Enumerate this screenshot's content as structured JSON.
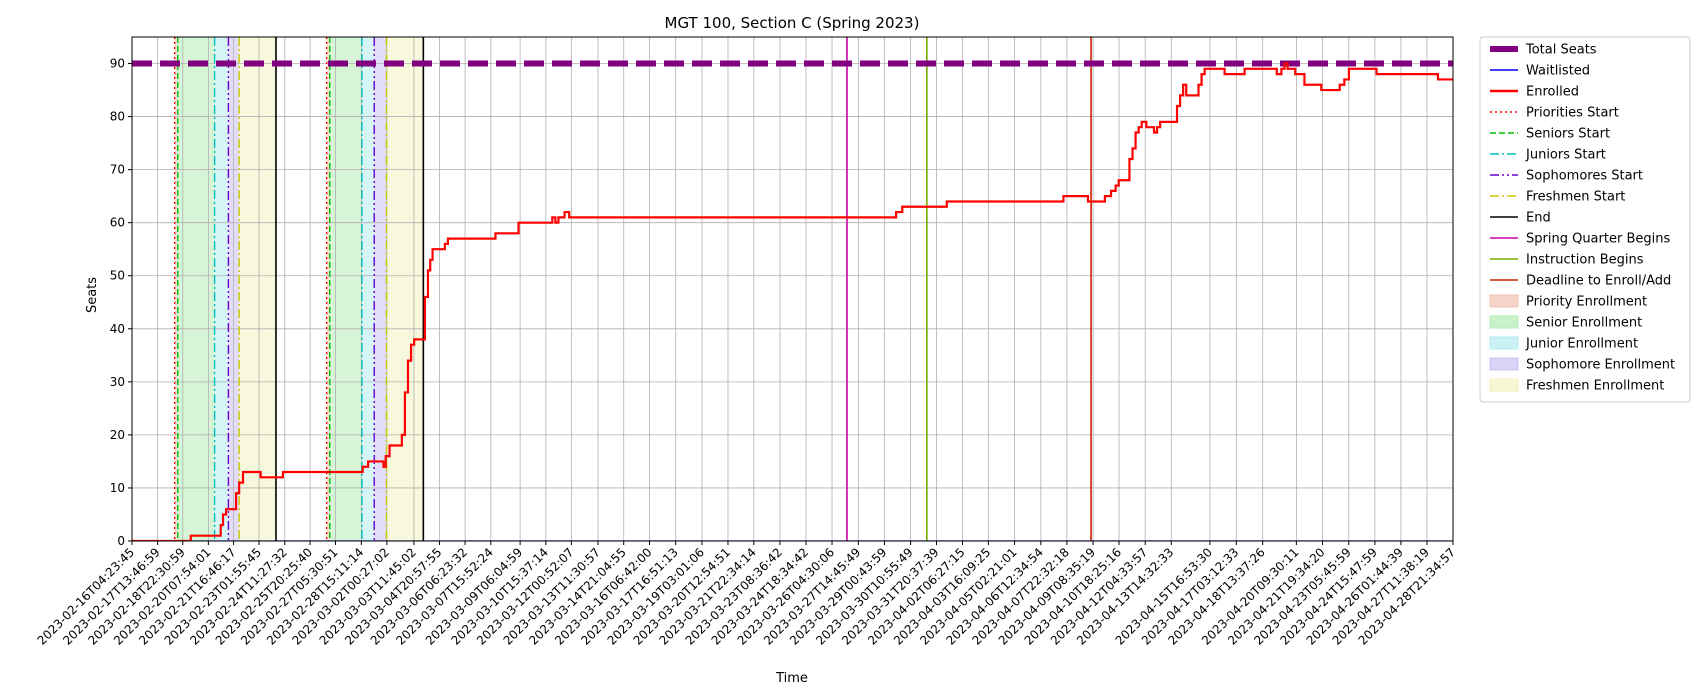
{
  "chart_data": {
    "type": "line",
    "title": "MGT 100, Section C (Spring 2023)",
    "xlabel": "Time",
    "ylabel": "Seats",
    "ylim": [
      0,
      95
    ],
    "yticks": [
      0,
      10,
      20,
      30,
      40,
      50,
      60,
      70,
      80,
      90
    ],
    "grid": true,
    "legend_position": "outside-right",
    "x_range": [
      "2023-02-16T04:23:45",
      "2023-04-28T21:34:57"
    ],
    "x_ticks": [
      "2023-02-16T04:23:45",
      "2023-02-17T13:46:59",
      "2023-02-18T22:30:59",
      "2023-02-20T07:54:01",
      "2023-02-21T16:46:17",
      "2023-02-23T01:55:45",
      "2023-02-24T11:27:32",
      "2023-02-25T20:25:40",
      "2023-02-27T05:30:51",
      "2023-02-28T15:11:14",
      "2023-03-02T00:27:02",
      "2023-03-03T11:45:02",
      "2023-03-04T20:57:55",
      "2023-03-06T06:23:32",
      "2023-03-07T15:52:24",
      "2023-03-09T06:04:59",
      "2023-03-10T15:37:14",
      "2023-03-12T00:52:07",
      "2023-03-13T11:30:57",
      "2023-03-14T21:04:55",
      "2023-03-16T06:42:00",
      "2023-03-17T16:51:13",
      "2023-03-19T03:01:06",
      "2023-03-20T12:54:51",
      "2023-03-21T22:34:14",
      "2023-03-23T08:36:42",
      "2023-03-24T18:34:42",
      "2023-03-26T04:30:06",
      "2023-03-27T14:45:49",
      "2023-03-29T00:43:59",
      "2023-03-30T10:55:49",
      "2023-03-31T20:37:39",
      "2023-04-02T06:27:15",
      "2023-04-03T16:09:25",
      "2023-04-05T02:21:01",
      "2023-04-06T12:34:54",
      "2023-04-07T22:32:18",
      "2023-04-09T08:35:19",
      "2023-04-10T18:25:16",
      "2023-04-12T04:33:57",
      "2023-04-13T14:32:33",
      "2023-04-15T16:53:30",
      "2023-04-17T03:12:33",
      "2023-04-18T13:37:26",
      "2023-04-20T09:30:11",
      "2023-04-21T19:34:20",
      "2023-04-23T05:45:59",
      "2023-04-24T15:47:59",
      "2023-04-26T01:44:39",
      "2023-04-27T11:38:19",
      "2023-04-28T21:34:57"
    ],
    "series": [
      {
        "name": "Total Seats",
        "color": "#800080",
        "style": "dashed-thick",
        "points": [
          [
            "2023-02-16T04:23:45",
            90
          ],
          [
            "2023-04-28T21:34:57",
            90
          ]
        ]
      },
      {
        "name": "Waitlisted",
        "color": "#0000ff",
        "style": "solid",
        "points": [
          [
            "2023-02-16T04:23:45",
            0
          ],
          [
            "2023-04-28T21:34:57",
            0
          ]
        ]
      },
      {
        "name": "Enrolled",
        "color": "#ff0000",
        "style": "step",
        "points": [
          [
            "2023-02-16T04:23:45",
            0
          ],
          [
            "2023-02-19T08:00:00",
            0
          ],
          [
            "2023-02-19T09:00:00",
            1
          ],
          [
            "2023-02-20T22:00:00",
            1
          ],
          [
            "2023-02-21T00:00:00",
            3
          ],
          [
            "2023-02-21T03:00:00",
            5
          ],
          [
            "2023-02-21T07:00:00",
            6
          ],
          [
            "2023-02-21T16:00:00",
            6
          ],
          [
            "2023-02-21T20:00:00",
            9
          ],
          [
            "2023-02-22T00:00:00",
            11
          ],
          [
            "2023-02-22T05:00:00",
            13
          ],
          [
            "2023-02-23T00:00:00",
            13
          ],
          [
            "2023-02-23T04:00:00",
            12
          ],
          [
            "2023-02-24T07:00:00",
            12
          ],
          [
            "2023-02-24T09:00:00",
            13
          ],
          [
            "2023-02-28T14:00:00",
            13
          ],
          [
            "2023-02-28T17:00:00",
            14
          ],
          [
            "2023-03-01T00:00:00",
            15
          ],
          [
            "2023-03-01T18:00:00",
            15
          ],
          [
            "2023-03-01T20:00:00",
            14
          ],
          [
            "2023-03-01T23:00:00",
            16
          ],
          [
            "2023-03-02T04:00:00",
            18
          ],
          [
            "2023-03-02T18:00:00",
            18
          ],
          [
            "2023-03-02T20:00:00",
            20
          ],
          [
            "2023-03-03T00:00:00",
            28
          ],
          [
            "2023-03-03T04:00:00",
            34
          ],
          [
            "2023-03-03T08:00:00",
            37
          ],
          [
            "2023-03-03T12:00:00",
            38
          ],
          [
            "2023-03-04T00:00:00",
            38
          ],
          [
            "2023-03-04T02:00:00",
            46
          ],
          [
            "2023-03-04T06:00:00",
            51
          ],
          [
            "2023-03-04T09:00:00",
            53
          ],
          [
            "2023-03-04T12:00:00",
            55
          ],
          [
            "2023-03-05T00:00:00",
            55
          ],
          [
            "2023-03-05T04:00:00",
            56
          ],
          [
            "2023-03-05T08:00:00",
            57
          ],
          [
            "2023-03-07T20:00:00",
            57
          ],
          [
            "2023-03-07T22:00:00",
            58
          ],
          [
            "2023-03-09T00:00:00",
            58
          ],
          [
            "2023-03-09T04:00:00",
            60
          ],
          [
            "2023-03-10T22:00:00",
            60
          ],
          [
            "2023-03-11T00:00:00",
            61
          ],
          [
            "2023-03-11T04:00:00",
            60
          ],
          [
            "2023-03-11T08:00:00",
            61
          ],
          [
            "2023-03-11T16:00:00",
            62
          ],
          [
            "2023-03-11T22:00:00",
            61
          ],
          [
            "2023-03-29T12:00:00",
            61
          ],
          [
            "2023-03-29T16:00:00",
            62
          ],
          [
            "2023-03-30T00:00:00",
            63
          ],
          [
            "2023-04-01T06:00:00",
            63
          ],
          [
            "2023-04-01T10:00:00",
            64
          ],
          [
            "2023-04-07T14:00:00",
            64
          ],
          [
            "2023-04-07T18:00:00",
            65
          ],
          [
            "2023-04-08T22:00:00",
            65
          ],
          [
            "2023-04-09T02:00:00",
            64
          ],
          [
            "2023-04-09T20:00:00",
            64
          ],
          [
            "2023-04-10T00:00:00",
            65
          ],
          [
            "2023-04-10T08:00:00",
            66
          ],
          [
            "2023-04-10T14:00:00",
            67
          ],
          [
            "2023-04-10T18:00:00",
            68
          ],
          [
            "2023-04-11T04:00:00",
            68
          ],
          [
            "2023-04-11T08:00:00",
            72
          ],
          [
            "2023-04-11T12:00:00",
            74
          ],
          [
            "2023-04-11T16:00:00",
            77
          ],
          [
            "2023-04-11T20:00:00",
            78
          ],
          [
            "2023-04-12T00:00:00",
            79
          ],
          [
            "2023-04-12T06:00:00",
            78
          ],
          [
            "2023-04-12T16:00:00",
            77
          ],
          [
            "2023-04-12T20:00:00",
            78
          ],
          [
            "2023-04-13T00:00:00",
            79
          ],
          [
            "2023-04-13T18:00:00",
            79
          ],
          [
            "2023-04-13T22:00:00",
            82
          ],
          [
            "2023-04-14T02:00:00",
            84
          ],
          [
            "2023-04-14T06:00:00",
            86
          ],
          [
            "2023-04-14T10:00:00",
            84
          ],
          [
            "2023-04-14T22:00:00",
            84
          ],
          [
            "2023-04-15T02:00:00",
            86
          ],
          [
            "2023-04-15T06:00:00",
            88
          ],
          [
            "2023-04-15T10:00:00",
            89
          ],
          [
            "2023-04-16T08:00:00",
            89
          ],
          [
            "2023-04-16T12:00:00",
            88
          ],
          [
            "2023-04-17T10:00:00",
            88
          ],
          [
            "2023-04-17T14:00:00",
            89
          ],
          [
            "2023-04-19T04:00:00",
            89
          ],
          [
            "2023-04-19T08:00:00",
            88
          ],
          [
            "2023-04-19T14:00:00",
            89
          ],
          [
            "2023-04-19T18:00:00",
            90
          ],
          [
            "2023-04-19T22:00:00",
            89
          ],
          [
            "2023-04-20T08:00:00",
            88
          ],
          [
            "2023-04-20T16:00:00",
            88
          ],
          [
            "2023-04-20T20:00:00",
            86
          ],
          [
            "2023-04-21T14:00:00",
            86
          ],
          [
            "2023-04-21T18:00:00",
            85
          ],
          [
            "2023-04-22T14:00:00",
            85
          ],
          [
            "2023-04-22T18:00:00",
            86
          ],
          [
            "2023-04-23T00:00:00",
            87
          ],
          [
            "2023-04-23T06:00:00",
            89
          ],
          [
            "2023-04-24T14:00:00",
            89
          ],
          [
            "2023-04-24T18:00:00",
            88
          ],
          [
            "2023-04-27T22:00:00",
            88
          ],
          [
            "2023-04-28T02:00:00",
            87
          ],
          [
            "2023-04-29T06:00:00",
            87
          ],
          [
            "2023-04-29T12:00:00",
            86
          ],
          [
            "2023-05-04T00:00:00",
            86
          ]
        ]
      }
    ],
    "vertical_lines": [
      {
        "name": "Priorities Start",
        "color": "#ff0000",
        "style": "dotted",
        "x": [
          "2023-02-18T12:00:00",
          "2023-02-26T18:00:00"
        ]
      },
      {
        "name": "Seniors Start",
        "color": "#00c000",
        "style": "dashed",
        "x": [
          "2023-02-18T16:00:00",
          "2023-02-26T22:00:00"
        ]
      },
      {
        "name": "Juniors Start",
        "color": "#00bfbf",
        "style": "dashdot",
        "x": [
          "2023-02-20T16:00:00",
          "2023-02-28T16:00:00"
        ]
      },
      {
        "name": "Sophomores Start",
        "color": "#6a00cc",
        "style": "dashdotdot",
        "x": [
          "2023-02-21T10:00:00",
          "2023-03-01T08:00:00"
        ]
      },
      {
        "name": "Freshmen Start",
        "color": "#c8c800",
        "style": "dashdot",
        "x": [
          "2023-02-22T00:00:00",
          "2023-03-02T00:00:00"
        ]
      },
      {
        "name": "End",
        "color": "#000000",
        "style": "solid",
        "x": [
          "2023-02-24T00:00:00",
          "2023-03-04T00:00:00"
        ]
      },
      {
        "name": "Spring Quarter Begins",
        "color": "#cc00aa",
        "style": "solid",
        "x": [
          "2023-03-27T00:00:00"
        ]
      },
      {
        "name": "Instruction Begins",
        "color": "#77aa00",
        "style": "solid",
        "x": [
          "2023-03-31T08:00:00"
        ]
      },
      {
        "name": "Deadline to Enroll/Add",
        "color": "#cc2200",
        "style": "solid",
        "x": [
          "2023-04-09T06:00:00"
        ]
      }
    ],
    "shaded_regions": [
      {
        "name": "Priority Enrollment",
        "color": "#f4c2b4",
        "ranges": [
          [
            "2023-02-18T12:00:00",
            "2023-02-18T16:00:00"
          ],
          [
            "2023-02-26T18:00:00",
            "2023-02-26T22:00:00"
          ]
        ]
      },
      {
        "name": "Senior Enrollment",
        "color": "#b4ecb4",
        "ranges": [
          [
            "2023-02-18T16:00:00",
            "2023-02-20T16:00:00"
          ],
          [
            "2023-02-26T22:00:00",
            "2023-02-28T16:00:00"
          ]
        ]
      },
      {
        "name": "Junior Enrollment",
        "color": "#b4ecf0",
        "ranges": [
          [
            "2023-02-20T16:00:00",
            "2023-02-21T10:00:00"
          ],
          [
            "2023-02-28T16:00:00",
            "2023-03-01T08:00:00"
          ]
        ]
      },
      {
        "name": "Sophomore Enrollment",
        "color": "#ccc0f4",
        "ranges": [
          [
            "2023-02-21T10:00:00",
            "2023-02-22T00:00:00"
          ],
          [
            "2023-03-01T08:00:00",
            "2023-03-02T00:00:00"
          ]
        ]
      },
      {
        "name": "Freshmen Enrollment",
        "color": "#f2f2c0",
        "ranges": [
          [
            "2023-02-22T00:00:00",
            "2023-02-24T00:00:00"
          ],
          [
            "2023-03-02T00:00:00",
            "2023-03-04T00:00:00"
          ]
        ]
      }
    ],
    "legend": [
      {
        "label": "Total Seats",
        "kind": "line",
        "color": "#800080",
        "style": "dashed-thick"
      },
      {
        "label": "Waitlisted",
        "kind": "line",
        "color": "#0000ff",
        "style": "solid"
      },
      {
        "label": "Enrolled",
        "kind": "line",
        "color": "#ff0000",
        "style": "solid-thick"
      },
      {
        "label": "Priorities Start",
        "kind": "line",
        "color": "#ff0000",
        "style": "dotted"
      },
      {
        "label": "Seniors Start",
        "kind": "line",
        "color": "#00c000",
        "style": "dashed"
      },
      {
        "label": "Juniors Start",
        "kind": "line",
        "color": "#00bfbf",
        "style": "dashdot"
      },
      {
        "label": "Sophomores Start",
        "kind": "line",
        "color": "#6a00cc",
        "style": "dashdotdot"
      },
      {
        "label": "Freshmen Start",
        "kind": "line",
        "color": "#c8c800",
        "style": "dashdot"
      },
      {
        "label": "End",
        "kind": "line",
        "color": "#000000",
        "style": "solid"
      },
      {
        "label": "Spring Quarter Begins",
        "kind": "line",
        "color": "#cc00aa",
        "style": "solid"
      },
      {
        "label": "Instruction Begins",
        "kind": "line",
        "color": "#77aa00",
        "style": "solid"
      },
      {
        "label": "Deadline to Enroll/Add",
        "kind": "line",
        "color": "#cc2200",
        "style": "solid"
      },
      {
        "label": "Priority Enrollment",
        "kind": "patch",
        "color": "#f4c2b4"
      },
      {
        "label": "Senior Enrollment",
        "kind": "patch",
        "color": "#b4ecb4"
      },
      {
        "label": "Junior Enrollment",
        "kind": "patch",
        "color": "#b4ecf0"
      },
      {
        "label": "Sophomore Enrollment",
        "kind": "patch",
        "color": "#ccc0f4"
      },
      {
        "label": "Freshmen Enrollment",
        "kind": "patch",
        "color": "#f2f2c0"
      }
    ]
  }
}
